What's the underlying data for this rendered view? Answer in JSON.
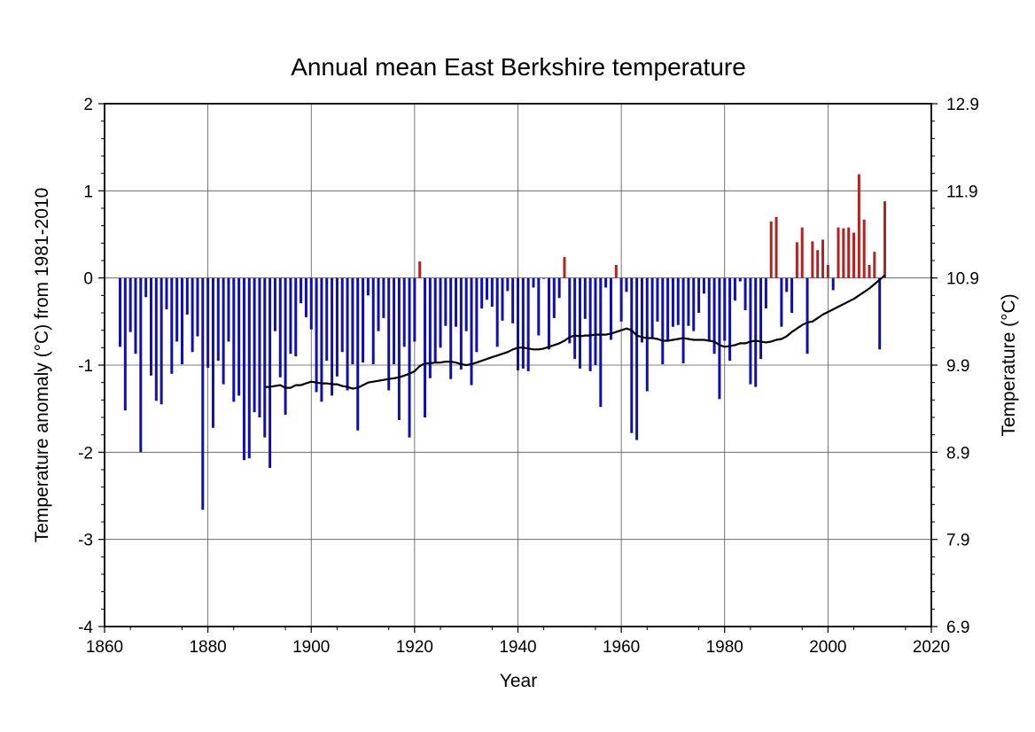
{
  "chart_data": {
    "type": "bar",
    "title": "Annual mean East Berkshire temperature",
    "xlabel": "Year",
    "ylabel": "Temperature anomaly (°C) from 1981-2010",
    "y2label": "Temperature (°C)",
    "xlim": [
      1860,
      2020
    ],
    "ylim": [
      -4,
      2
    ],
    "y2lim": [
      6.9,
      12.9
    ],
    "xticks": [
      "1860",
      "1880",
      "1900",
      "1920",
      "1940",
      "1960",
      "1980",
      "2000",
      "2020"
    ],
    "yticks": [
      "-4",
      "-3",
      "-2",
      "-1",
      "0",
      "1",
      "2"
    ],
    "y2ticks": [
      "6.9",
      "7.9",
      "8.9",
      "9.9",
      "10.9",
      "11.9",
      "12.9"
    ],
    "grid": true,
    "colors": {
      "positive": "#b22222",
      "negative": "#1010b0",
      "smooth": "#000000"
    },
    "series": [
      {
        "kind": "bar",
        "x": [
          1863,
          1864,
          1865,
          1866,
          1867,
          1868,
          1869,
          1870,
          1871,
          1872,
          1873,
          1874,
          1875,
          1876,
          1877,
          1878,
          1879,
          1880,
          1881,
          1882,
          1883,
          1884,
          1885,
          1886,
          1887,
          1888,
          1889,
          1890,
          1891,
          1892,
          1893,
          1894,
          1895,
          1896,
          1897,
          1898,
          1899,
          1900,
          1901,
          1902,
          1903,
          1904,
          1905,
          1906,
          1907,
          1908,
          1909,
          1910,
          1911,
          1912,
          1913,
          1914,
          1915,
          1916,
          1917,
          1918,
          1919,
          1920,
          1921,
          1922,
          1923,
          1924,
          1925,
          1926,
          1927,
          1928,
          1929,
          1930,
          1931,
          1932,
          1933,
          1934,
          1935,
          1936,
          1937,
          1938,
          1939,
          1940,
          1941,
          1942,
          1943,
          1944,
          1945,
          1946,
          1947,
          1948,
          1949,
          1950,
          1951,
          1952,
          1953,
          1954,
          1955,
          1956,
          1957,
          1958,
          1959,
          1960,
          1961,
          1962,
          1963,
          1964,
          1965,
          1966,
          1967,
          1968,
          1969,
          1970,
          1971,
          1972,
          1973,
          1974,
          1975,
          1976,
          1977,
          1978,
          1979,
          1980,
          1981,
          1982,
          1983,
          1984,
          1985,
          1986,
          1987,
          1988,
          1989,
          1990,
          1991,
          1992,
          1993,
          1994,
          1995,
          1996,
          1997,
          1998,
          1999,
          2000,
          2001,
          2002,
          2003,
          2004,
          2005,
          2006,
          2007,
          2008,
          2009,
          2010,
          2011
        ],
        "values": [
          -0.79,
          -1.52,
          -0.62,
          -0.87,
          -2.0,
          -0.22,
          -1.12,
          -1.41,
          -1.45,
          -0.36,
          -1.1,
          -0.73,
          -0.99,
          -0.42,
          -0.85,
          -0.67,
          -2.66,
          -1.03,
          -1.72,
          -0.95,
          -1.22,
          -0.73,
          -1.42,
          -1.35,
          -2.09,
          -2.07,
          -1.54,
          -1.6,
          -1.83,
          -2.18,
          -0.61,
          -1.14,
          -1.57,
          -0.87,
          -0.9,
          -0.29,
          -0.45,
          -0.59,
          -1.31,
          -1.42,
          -0.95,
          -1.35,
          -1.13,
          -0.85,
          -1.29,
          -0.99,
          -1.75,
          -0.97,
          -0.2,
          -0.99,
          -0.61,
          -0.46,
          -1.29,
          -0.99,
          -1.63,
          -0.79,
          -1.83,
          -0.73,
          0.19,
          -1.6,
          -1.15,
          -0.98,
          -0.8,
          -0.55,
          -1.16,
          -0.56,
          -1.05,
          -0.61,
          -1.23,
          -0.85,
          -0.35,
          -0.25,
          -0.33,
          -0.79,
          -0.49,
          -0.15,
          -0.52,
          -1.06,
          -1.04,
          -1.07,
          -0.11,
          -0.66,
          -0.01,
          -0.82,
          -0.46,
          -0.23,
          0.24,
          -0.75,
          -0.93,
          -1.04,
          -0.47,
          -1.07,
          -1.0,
          -1.48,
          -0.11,
          -0.71,
          0.15,
          -0.5,
          -0.16,
          -1.78,
          -1.86,
          -0.74,
          -1.3,
          -0.68,
          -0.5,
          -0.99,
          -0.72,
          -0.56,
          -0.54,
          -0.98,
          -0.55,
          -0.61,
          -0.4,
          -0.18,
          -0.72,
          -0.87,
          -1.39,
          -0.72,
          -0.95,
          -0.26,
          -0.04,
          -0.37,
          -1.22,
          -1.25,
          -0.93,
          -0.35,
          0.65,
          0.7,
          -0.56,
          -0.16,
          -0.4,
          0.41,
          0.58,
          -0.87,
          0.42,
          0.32,
          0.44,
          0.15,
          -0.14,
          0.58,
          0.57,
          0.58,
          0.52,
          1.19,
          0.67,
          0.15,
          0.3,
          -0.82,
          0.88
        ]
      },
      {
        "kind": "line",
        "x": [
          1891,
          1892,
          1893,
          1894,
          1895,
          1896,
          1897,
          1898,
          1899,
          1900,
          1901,
          1902,
          1903,
          1904,
          1905,
          1906,
          1907,
          1908,
          1909,
          1910,
          1911,
          1912,
          1913,
          1914,
          1915,
          1916,
          1917,
          1918,
          1919,
          1920,
          1921,
          1922,
          1923,
          1924,
          1925,
          1926,
          1927,
          1928,
          1929,
          1930,
          1931,
          1932,
          1933,
          1934,
          1935,
          1936,
          1937,
          1938,
          1939,
          1940,
          1941,
          1942,
          1943,
          1944,
          1945,
          1946,
          1947,
          1948,
          1949,
          1950,
          1951,
          1952,
          1953,
          1954,
          1955,
          1956,
          1957,
          1958,
          1959,
          1960,
          1961,
          1962,
          1963,
          1964,
          1965,
          1966,
          1967,
          1968,
          1969,
          1970,
          1971,
          1972,
          1973,
          1974,
          1975,
          1976,
          1977,
          1978,
          1979,
          1980,
          1981,
          1982,
          1983,
          1984,
          1985,
          1986,
          1987,
          1988,
          1989,
          1990,
          1991,
          1992,
          1993,
          1994,
          1995,
          1996,
          1997,
          1998,
          1999,
          2000,
          2001,
          2002,
          2003,
          2004,
          2005,
          2006,
          2007,
          2008,
          2009,
          2010,
          2011
        ],
        "values": [
          -1.25,
          -1.25,
          -1.24,
          -1.23,
          -1.26,
          -1.26,
          -1.23,
          -1.23,
          -1.21,
          -1.19,
          -1.2,
          -1.21,
          -1.21,
          -1.22,
          -1.22,
          -1.24,
          -1.25,
          -1.27,
          -1.26,
          -1.23,
          -1.2,
          -1.19,
          -1.18,
          -1.17,
          -1.16,
          -1.15,
          -1.14,
          -1.12,
          -1.1,
          -1.07,
          -1.01,
          -0.98,
          -0.98,
          -0.97,
          -0.97,
          -0.96,
          -0.96,
          -0.97,
          -0.99,
          -1.0,
          -0.99,
          -0.97,
          -0.95,
          -0.93,
          -0.91,
          -0.89,
          -0.87,
          -0.85,
          -0.82,
          -0.8,
          -0.8,
          -0.81,
          -0.82,
          -0.82,
          -0.81,
          -0.79,
          -0.77,
          -0.75,
          -0.72,
          -0.68,
          -0.66,
          -0.67,
          -0.66,
          -0.66,
          -0.65,
          -0.65,
          -0.65,
          -0.64,
          -0.62,
          -0.6,
          -0.58,
          -0.6,
          -0.66,
          -0.68,
          -0.69,
          -0.69,
          -0.7,
          -0.72,
          -0.72,
          -0.71,
          -0.7,
          -0.69,
          -0.7,
          -0.71,
          -0.71,
          -0.71,
          -0.72,
          -0.73,
          -0.77,
          -0.79,
          -0.78,
          -0.77,
          -0.75,
          -0.75,
          -0.73,
          -0.72,
          -0.73,
          -0.74,
          -0.73,
          -0.71,
          -0.7,
          -0.67,
          -0.62,
          -0.58,
          -0.54,
          -0.51,
          -0.5,
          -0.46,
          -0.42,
          -0.39,
          -0.36,
          -0.33,
          -0.3,
          -0.27,
          -0.24,
          -0.2,
          -0.16,
          -0.12,
          -0.07,
          -0.02,
          0.03
        ]
      }
    ]
  }
}
